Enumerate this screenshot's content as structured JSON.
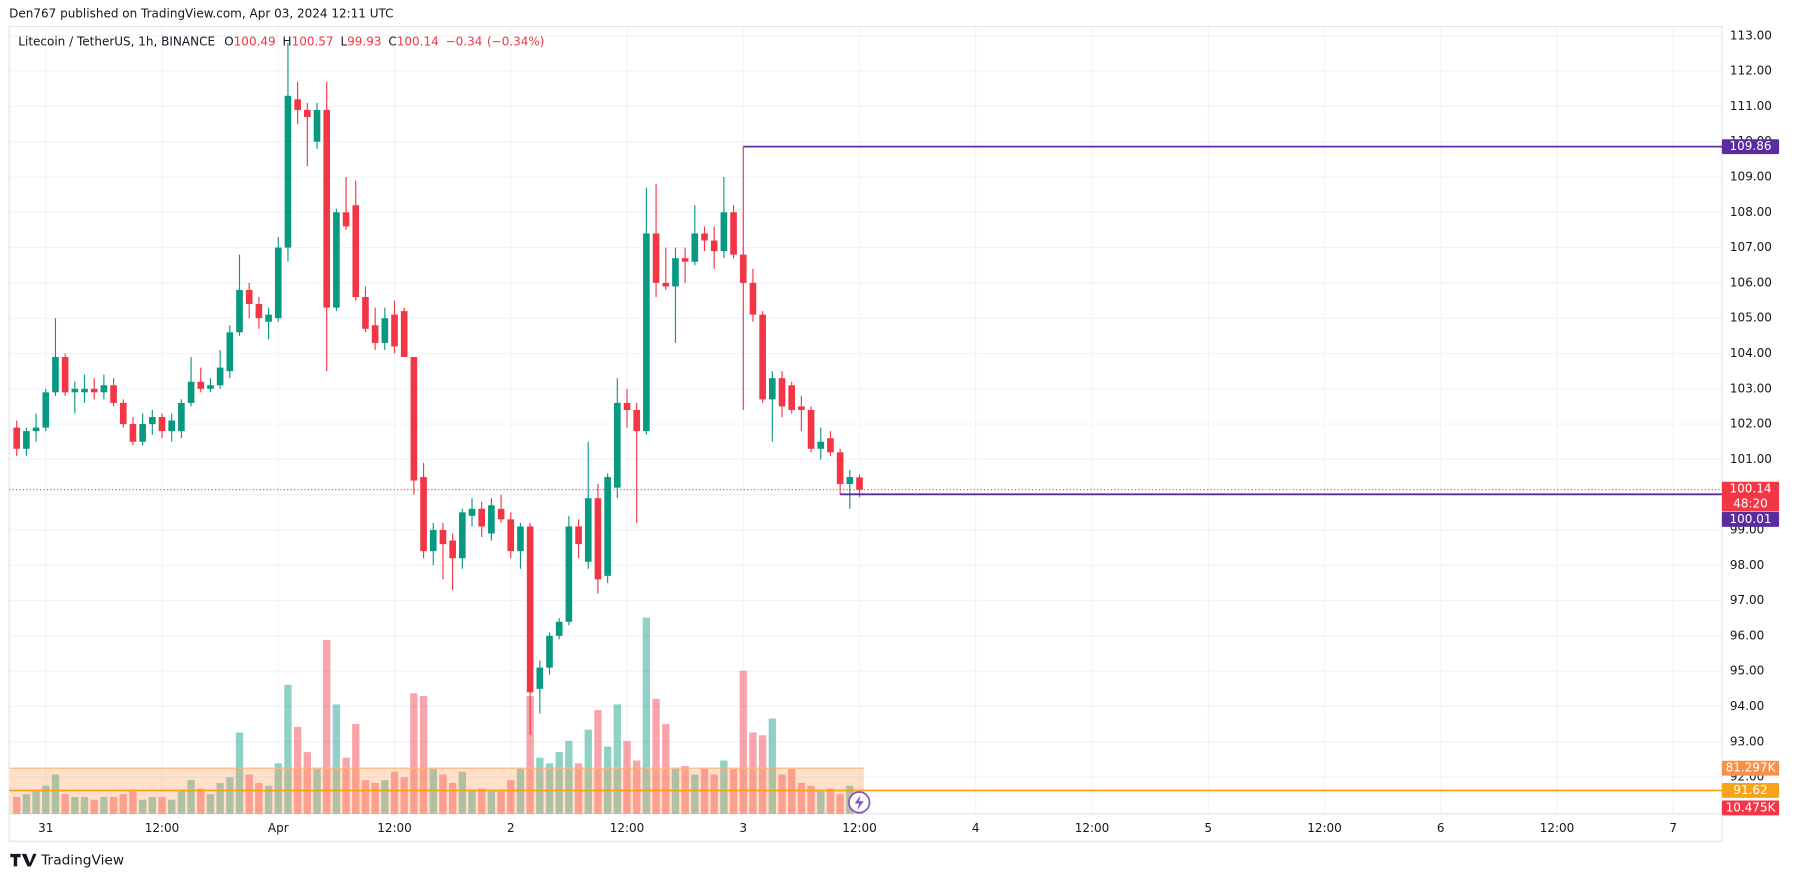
{
  "header": {
    "attribution": "Den767 published on TradingView.com, Apr 03, 2024 12:11 UTC",
    "brand": "TradingView"
  },
  "chart_data": {
    "type": "candlestick",
    "title": "Litecoin / TetherUS, 1h, BINANCE",
    "ohlc_labels": [
      "O",
      "H",
      "L",
      "C"
    ],
    "change": {
      "value": -0.34,
      "label": "−0.34"
    },
    "change_pct": {
      "value": -0.34,
      "label": "(−0.34%)"
    },
    "countdown": "48:20",
    "x_tick_labels": [
      "31",
      "12:00",
      "Apr",
      "12:00",
      "2",
      "12:00",
      "3",
      "12:00",
      "4",
      "12:00",
      "5",
      "12:00",
      "6",
      "12:00",
      "7"
    ],
    "open": [
      101.9,
      101.3,
      101.8,
      101.9,
      102.9,
      103.9,
      102.9,
      102.9,
      103.0,
      102.9,
      103.1,
      102.6,
      102.0,
      101.5,
      102.0,
      102.2,
      101.8,
      101.8,
      102.6,
      103.2,
      103.0,
      103.1,
      103.5,
      104.6,
      105.8,
      105.4,
      104.9,
      105.0,
      107.0,
      111.2,
      110.9,
      110.0,
      110.9,
      105.3,
      108.0,
      108.2,
      105.6,
      104.8,
      104.3,
      105.1,
      105.2,
      103.9,
      100.5,
      98.4,
      99.0,
      98.7,
      98.2,
      99.4,
      99.6,
      98.9,
      99.6,
      99.3,
      98.4,
      99.1,
      94.5,
      95.1,
      96.0,
      96.4,
      99.1,
      98.1,
      99.9,
      97.7,
      100.2,
      102.6,
      102.4,
      101.8,
      107.4,
      106.0,
      105.9,
      106.7,
      106.6,
      107.4,
      107.2,
      106.9,
      108.0,
      106.8,
      106.0,
      105.1,
      102.7,
      103.3,
      103.1,
      102.5,
      102.4,
      101.3,
      101.6,
      101.2,
      100.3,
      100.49
    ],
    "high": [
      102.1,
      101.9,
      102.3,
      103.0,
      105.0,
      104.0,
      103.2,
      103.4,
      103.3,
      103.4,
      103.3,
      102.7,
      102.2,
      102.3,
      102.4,
      102.3,
      102.3,
      102.7,
      103.9,
      103.6,
      103.3,
      104.1,
      104.8,
      106.8,
      106.0,
      105.6,
      105.3,
      107.3,
      112.8,
      111.7,
      111.1,
      111.1,
      111.7,
      108.1,
      109.0,
      108.9,
      105.9,
      105.3,
      105.3,
      105.5,
      105.3,
      103.9,
      100.9,
      99.2,
      99.2,
      98.9,
      99.6,
      99.9,
      99.8,
      99.9,
      100.0,
      99.5,
      99.2,
      99.2,
      95.3,
      96.1,
      96.5,
      99.4,
      99.3,
      101.5,
      100.3,
      100.6,
      103.3,
      103.0,
      102.6,
      108.7,
      108.8,
      107.0,
      107.0,
      107.0,
      108.2,
      107.6,
      107.6,
      109.0,
      108.2,
      109.86,
      106.4,
      105.2,
      103.5,
      103.5,
      103.2,
      102.8,
      102.5,
      101.9,
      101.8,
      101.3,
      100.7,
      100.57
    ],
    "low": [
      101.1,
      101.1,
      101.5,
      101.8,
      102.8,
      102.8,
      102.3,
      102.6,
      102.7,
      102.7,
      102.5,
      101.9,
      101.4,
      101.4,
      101.7,
      101.6,
      101.5,
      101.6,
      102.5,
      102.9,
      102.9,
      103.0,
      103.3,
      104.5,
      105.0,
      104.7,
      104.4,
      104.9,
      106.6,
      110.5,
      109.3,
      109.8,
      103.5,
      105.2,
      107.5,
      105.5,
      104.6,
      104.1,
      104.1,
      104.0,
      103.9,
      100.0,
      98.2,
      98.0,
      97.6,
      97.3,
      97.9,
      99.1,
      98.8,
      98.7,
      99.2,
      98.2,
      97.9,
      93.2,
      93.8,
      94.9,
      95.9,
      96.3,
      98.2,
      97.9,
      97.2,
      97.5,
      99.9,
      101.9,
      99.2,
      101.7,
      105.6,
      105.8,
      104.3,
      106.0,
      106.5,
      106.9,
      106.4,
      106.7,
      106.7,
      102.4,
      104.9,
      102.6,
      101.5,
      102.2,
      102.3,
      101.8,
      101.2,
      101.0,
      101.1,
      100.01,
      99.6,
      99.93
    ],
    "close": [
      101.3,
      101.8,
      101.9,
      102.9,
      103.9,
      102.9,
      103.0,
      103.0,
      102.9,
      103.1,
      102.6,
      102.0,
      101.5,
      102.0,
      102.2,
      101.8,
      102.1,
      102.6,
      103.2,
      103.0,
      103.1,
      103.6,
      104.6,
      105.8,
      105.4,
      105.0,
      105.1,
      107.0,
      111.3,
      110.9,
      110.7,
      110.9,
      105.3,
      108.0,
      107.6,
      105.6,
      104.7,
      104.3,
      105.0,
      104.2,
      103.9,
      100.4,
      98.4,
      99.0,
      98.6,
      98.2,
      99.5,
      99.6,
      99.1,
      99.7,
      99.3,
      98.4,
      99.1,
      94.4,
      95.1,
      96.0,
      96.4,
      99.1,
      98.6,
      99.9,
      97.6,
      100.5,
      102.6,
      102.4,
      101.8,
      107.4,
      106.0,
      105.9,
      106.7,
      106.6,
      107.4,
      107.2,
      106.9,
      108.0,
      106.8,
      106.0,
      105.1,
      102.7,
      103.3,
      102.5,
      102.4,
      102.4,
      101.3,
      101.5,
      101.2,
      100.3,
      100.5,
      100.14
    ],
    "volume": [
      30,
      35,
      40,
      50,
      70,
      35,
      30,
      30,
      25,
      30,
      30,
      35,
      40,
      25,
      30,
      30,
      25,
      40,
      60,
      45,
      35,
      55,
      65,
      145,
      70,
      55,
      50,
      90,
      230,
      155,
      110,
      80,
      310,
      195,
      100,
      160,
      60,
      55,
      60,
      75,
      65,
      215,
      210,
      80,
      70,
      55,
      75,
      40,
      45,
      40,
      40,
      60,
      80,
      210,
      100,
      90,
      110,
      130,
      90,
      150,
      185,
      120,
      195,
      130,
      95,
      350,
      205,
      160,
      80,
      85,
      70,
      80,
      70,
      95,
      80,
      255,
      145,
      140,
      170,
      70,
      80,
      55,
      50,
      40,
      45,
      35,
      50,
      10.475
    ],
    "volume_value_label": "10.475K",
    "volume_ma": {
      "value": 81.297,
      "label": "81.297K"
    },
    "up_color": "#089981",
    "down_color": "#f23645",
    "ylim": [
      90.96,
      113.26
    ],
    "yticks": [
      {
        "value": 113,
        "label": "113.00"
      },
      {
        "value": 112,
        "label": "112.00"
      },
      {
        "value": 111,
        "label": "111.00"
      },
      {
        "value": 110,
        "label": "110.00"
      },
      {
        "value": 109,
        "label": "109.00"
      },
      {
        "value": 108,
        "label": "108.00"
      },
      {
        "value": 107,
        "label": "107.00"
      },
      {
        "value": 106,
        "label": "106.00"
      },
      {
        "value": 105,
        "label": "105.00"
      },
      {
        "value": 104,
        "label": "104.00"
      },
      {
        "value": 103,
        "label": "103.00"
      },
      {
        "value": 102,
        "label": "102.00"
      },
      {
        "value": 101,
        "label": "101.00"
      },
      {
        "value": 100,
        "label": "100.00"
      },
      {
        "value": 99,
        "label": "99.00"
      },
      {
        "value": 98,
        "label": "98.00"
      },
      {
        "value": 97,
        "label": "97.00"
      },
      {
        "value": 96,
        "label": "96.00"
      },
      {
        "value": 95,
        "label": "95.00"
      },
      {
        "value": 94,
        "label": "94.00"
      },
      {
        "value": 93,
        "label": "93.00"
      },
      {
        "value": 92,
        "label": "92.00"
      }
    ],
    "grid": true,
    "levels": [
      {
        "value": 109.86,
        "color": "#5b2c9f"
      },
      {
        "value": 100.01,
        "color": "#5b2c9f"
      }
    ],
    "hline": {
      "value": 91.62,
      "color": "#f7a21b"
    }
  }
}
